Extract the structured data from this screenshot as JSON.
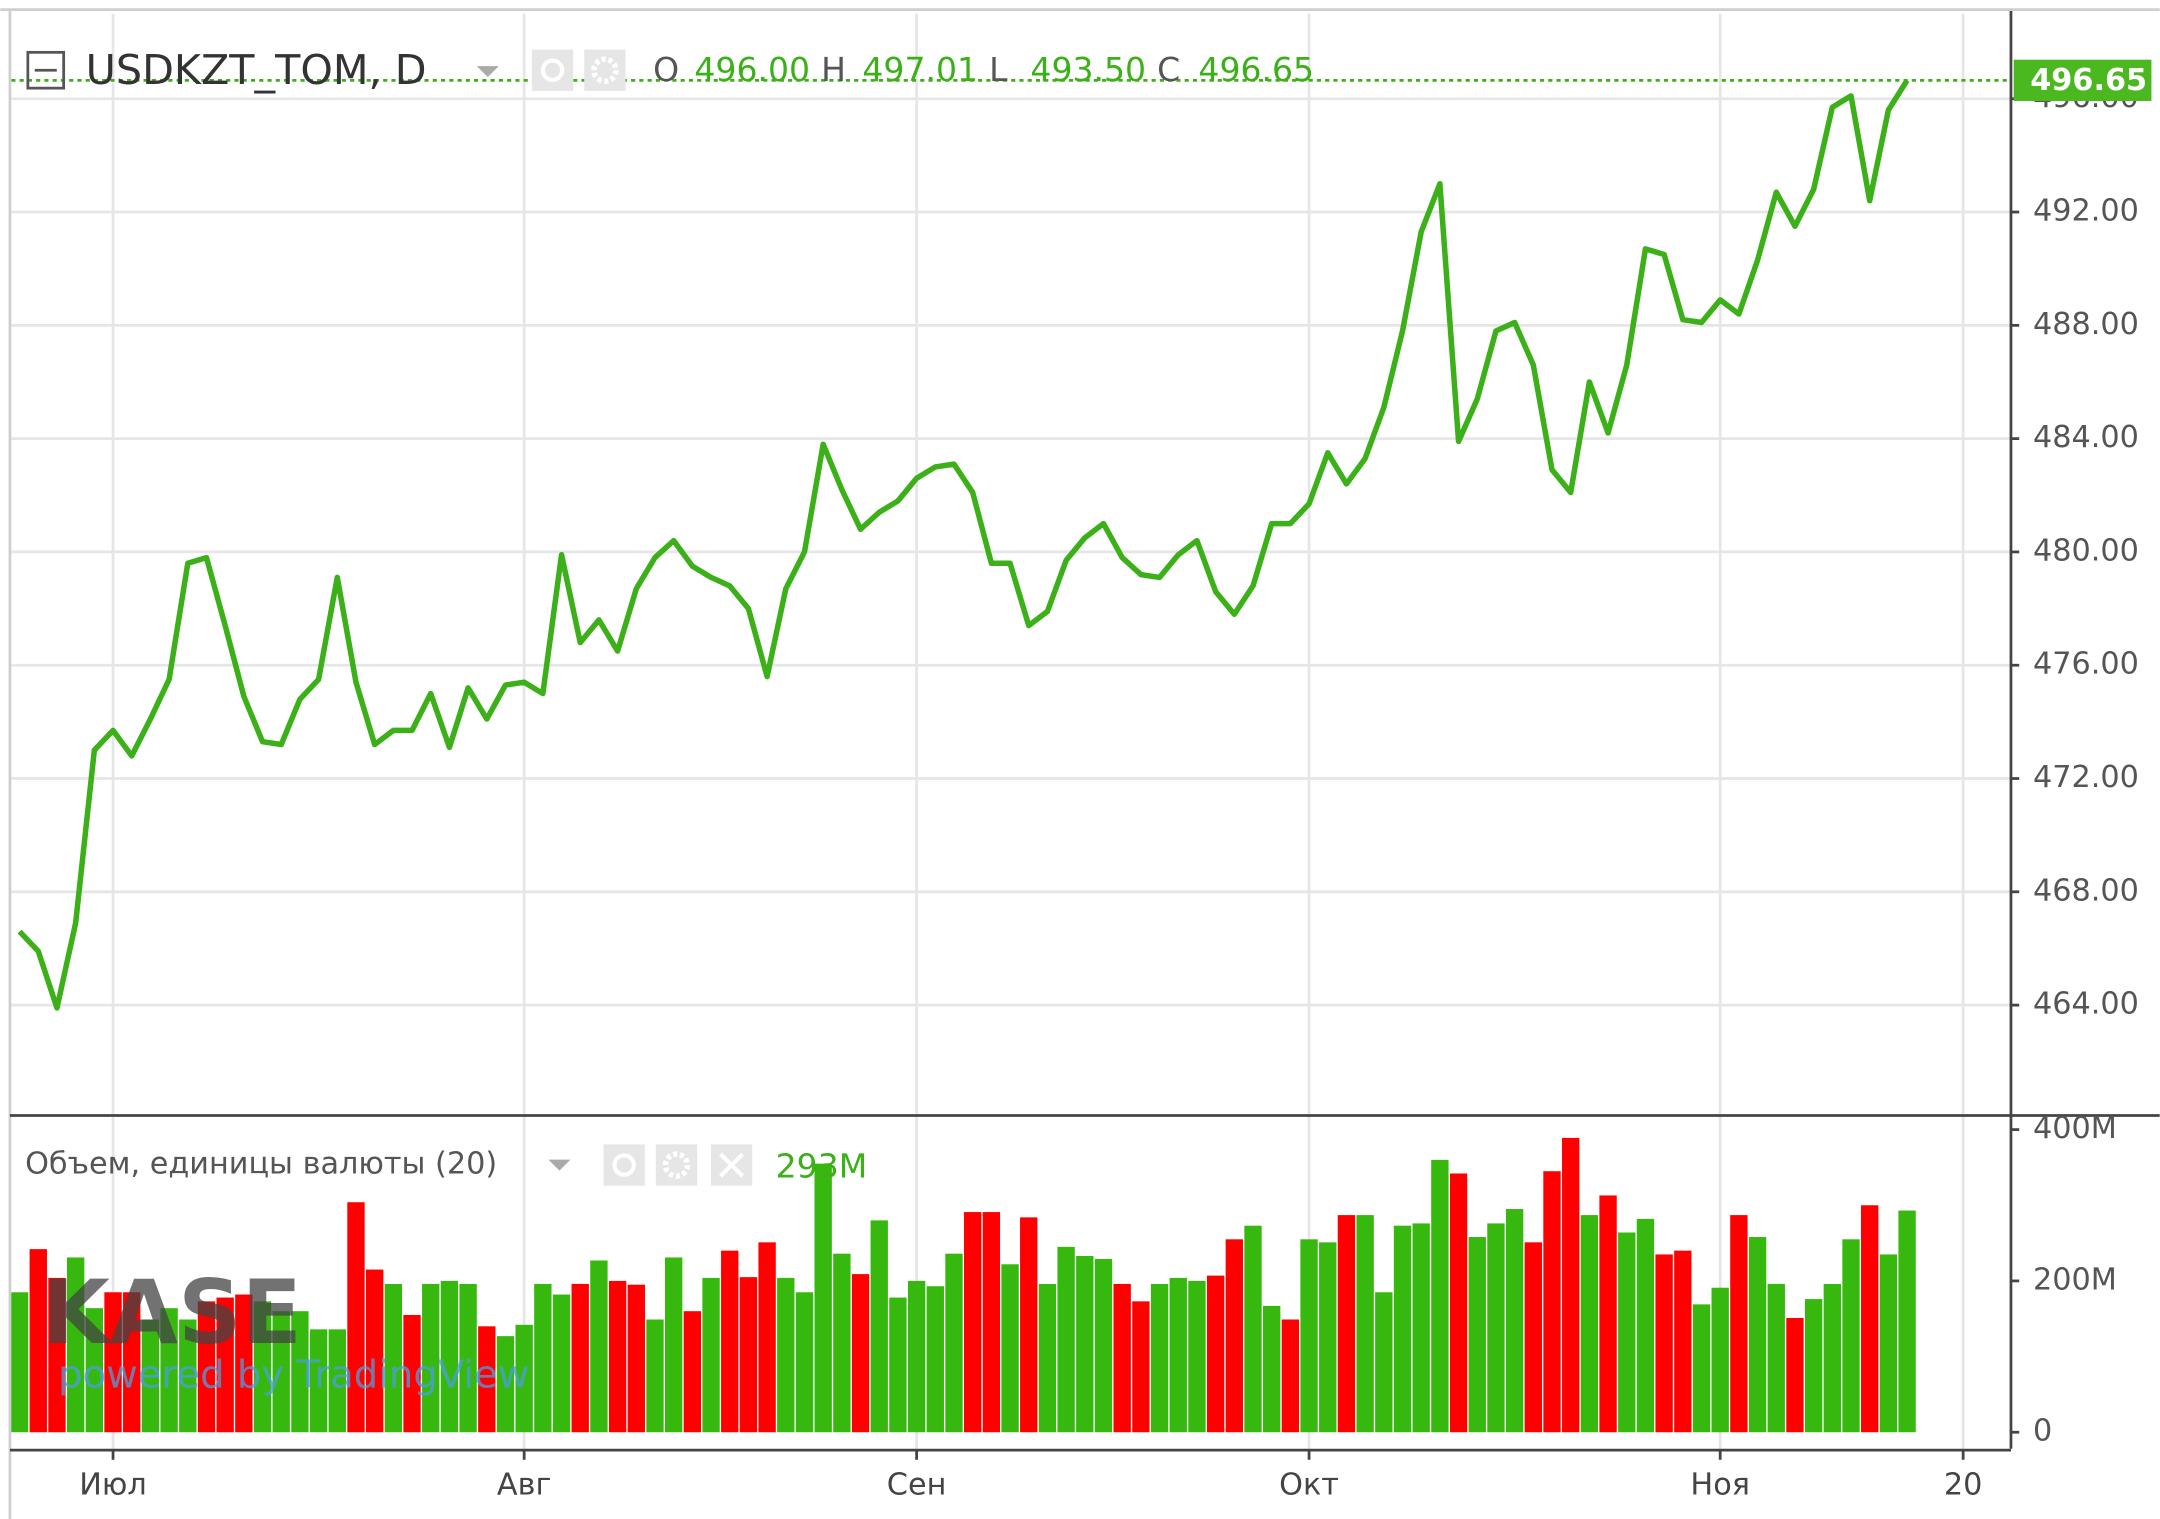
{
  "chart_data": [
    {
      "type": "line",
      "title": "USDKZT_TOM, D",
      "color": "#3cb018",
      "ohlc": [
        {
          "key": "O",
          "value": 496,
          "label": "496.00"
        },
        {
          "key": "H",
          "value": 497.01
        },
        {
          "key": "L",
          "value": 493.5,
          "label": "493.50"
        },
        {
          "key": "C",
          "value": 496.65
        }
      ],
      "values": [
        466.6,
        465.9,
        463.9,
        466.9,
        473.0,
        473.7,
        472.8,
        474.1,
        475.5,
        479.6,
        479.8,
        477.4,
        474.9,
        473.3,
        473.2,
        474.8,
        475.5,
        479.1,
        475.4,
        473.2,
        473.7,
        473.7,
        475.0,
        473.1,
        475.2,
        474.1,
        475.3,
        475.4,
        475.0,
        479.9,
        476.8,
        477.6,
        476.5,
        478.7,
        479.8,
        480.4,
        479.5,
        479.1,
        478.8,
        478.0,
        475.6,
        478.7,
        480.0,
        483.8,
        482.2,
        480.8,
        481.4,
        481.8,
        482.6,
        483.0,
        483.1,
        482.1,
        479.6,
        479.6,
        477.4,
        477.9,
        479.7,
        480.5,
        481.0,
        479.8,
        479.2,
        479.1,
        479.9,
        480.4,
        478.6,
        477.8,
        478.8,
        481.0,
        481.0,
        481.7,
        483.5,
        482.4,
        483.3,
        485.1,
        487.8,
        491.3,
        493.0,
        483.9,
        485.4,
        487.8,
        488.1,
        486.6,
        482.9,
        482.1,
        486.0,
        484.2,
        486.6,
        490.7,
        490.5,
        488.2,
        488.1,
        488.9,
        488.4,
        490.3,
        492.7,
        491.5,
        492.8,
        495.7,
        496.1,
        492.4,
        495.6,
        496.65,
        null,
        null,
        null
      ],
      "ylim": [
        460.2,
        499.0
      ],
      "yticks": [
        {
          "value": 464,
          "label": "464.00"
        },
        {
          "value": 468,
          "label": "468.00"
        },
        {
          "value": 472,
          "label": "472.00"
        },
        {
          "value": 476,
          "label": "476.00"
        },
        {
          "value": 480,
          "label": "480.00"
        },
        {
          "value": 484,
          "label": "484.00"
        },
        {
          "value": 488,
          "label": "488.00"
        },
        {
          "value": 492,
          "label": "492.00"
        },
        {
          "value": 496,
          "label": "496.00"
        }
      ],
      "grid": true
    },
    {
      "type": "bar",
      "title": "Объем, единицы валюты (20)",
      "last_value": {
        "value": 293,
        "label": "293M"
      },
      "categories": [
        null,
        null,
        null,
        null,
        null,
        "Июл",
        null,
        null,
        null,
        null,
        null,
        null,
        null,
        null,
        null,
        null,
        null,
        null,
        null,
        null,
        null,
        null,
        null,
        null,
        null,
        null,
        null,
        "Авг",
        null,
        null,
        null,
        null,
        null,
        null,
        null,
        null,
        null,
        null,
        null,
        null,
        null,
        null,
        null,
        null,
        null,
        null,
        null,
        null,
        "Сен",
        null,
        null,
        null,
        null,
        null,
        null,
        null,
        null,
        null,
        null,
        null,
        null,
        null,
        null,
        null,
        null,
        null,
        null,
        null,
        null,
        "Окт",
        null,
        null,
        null,
        null,
        null,
        null,
        null,
        null,
        null,
        null,
        null,
        null,
        null,
        null,
        null,
        null,
        null,
        null,
        null,
        null,
        null,
        "Ноя",
        null,
        null,
        null,
        null,
        null,
        null,
        null,
        null,
        null,
        null,
        null,
        null,
        "20"
      ],
      "values": [
        185,
        242,
        204,
        231,
        164,
        185,
        185,
        149,
        164,
        149,
        173,
        178,
        182,
        173,
        160,
        160,
        136,
        136,
        304,
        215,
        196,
        155,
        196,
        200,
        196,
        140,
        127,
        142,
        196,
        182,
        196,
        227,
        200,
        195,
        149,
        231,
        160,
        204,
        240,
        205,
        251,
        204,
        185,
        355,
        236,
        209,
        280,
        178,
        200,
        193,
        236,
        291,
        291,
        222,
        284,
        196,
        245,
        233,
        229,
        196,
        173,
        196,
        204,
        200,
        207,
        255,
        273,
        167,
        149,
        255,
        251,
        287,
        287,
        185,
        273,
        276,
        360,
        342,
        258,
        276,
        295,
        251,
        345,
        389,
        287,
        313,
        264,
        282,
        235,
        240,
        169,
        191,
        287,
        258,
        196,
        151,
        176,
        196,
        255,
        300,
        235,
        293,
        null,
        null,
        null
      ],
      "colors": [
        "#37b80f",
        "#ff0000",
        "#ff0000",
        "#37b80f",
        "#37b80f",
        "#ff0000",
        "#ff0000",
        "#37b80f",
        "#37b80f",
        "#37b80f",
        "#ff0000",
        "#ff0000",
        "#ff0000",
        "#37b80f",
        "#37b80f",
        "#37b80f",
        "#37b80f",
        "#37b80f",
        "#ff0000",
        "#ff0000",
        "#37b80f",
        "#ff0000",
        "#37b80f",
        "#37b80f",
        "#37b80f",
        "#ff0000",
        "#37b80f",
        "#37b80f",
        "#37b80f",
        "#37b80f",
        "#ff0000",
        "#37b80f",
        "#ff0000",
        "#ff0000",
        "#37b80f",
        "#37b80f",
        "#ff0000",
        "#37b80f",
        "#ff0000",
        "#ff0000",
        "#ff0000",
        "#37b80f",
        "#37b80f",
        "#37b80f",
        "#37b80f",
        "#ff0000",
        "#37b80f",
        "#37b80f",
        "#37b80f",
        "#37b80f",
        "#37b80f",
        "#ff0000",
        "#ff0000",
        "#37b80f",
        "#ff0000",
        "#37b80f",
        "#37b80f",
        "#37b80f",
        "#37b80f",
        "#ff0000",
        "#ff0000",
        "#37b80f",
        "#37b80f",
        "#37b80f",
        "#ff0000",
        "#ff0000",
        "#37b80f",
        "#37b80f",
        "#ff0000",
        "#37b80f",
        "#37b80f",
        "#ff0000",
        "#37b80f",
        "#37b80f",
        "#37b80f",
        "#37b80f",
        "#37b80f",
        "#ff0000",
        "#37b80f",
        "#37b80f",
        "#37b80f",
        "#ff0000",
        "#ff0000",
        "#ff0000",
        "#37b80f",
        "#ff0000",
        "#37b80f",
        "#37b80f",
        "#ff0000",
        "#ff0000",
        "#37b80f",
        "#37b80f",
        "#ff0000",
        "#37b80f",
        "#37b80f",
        "#ff0000",
        "#37b80f",
        "#37b80f",
        "#37b80f",
        "#ff0000",
        "#37b80f",
        "#37b80f",
        null,
        null,
        null
      ],
      "ylim": [
        0,
        415
      ],
      "yticks": [
        0,
        {
          "value": 200,
          "label": "200M"
        },
        {
          "value": 400,
          "label": "400M"
        }
      ]
    }
  ],
  "watermark": {
    "logo": "KASE",
    "credit": "powered by TradingView"
  }
}
